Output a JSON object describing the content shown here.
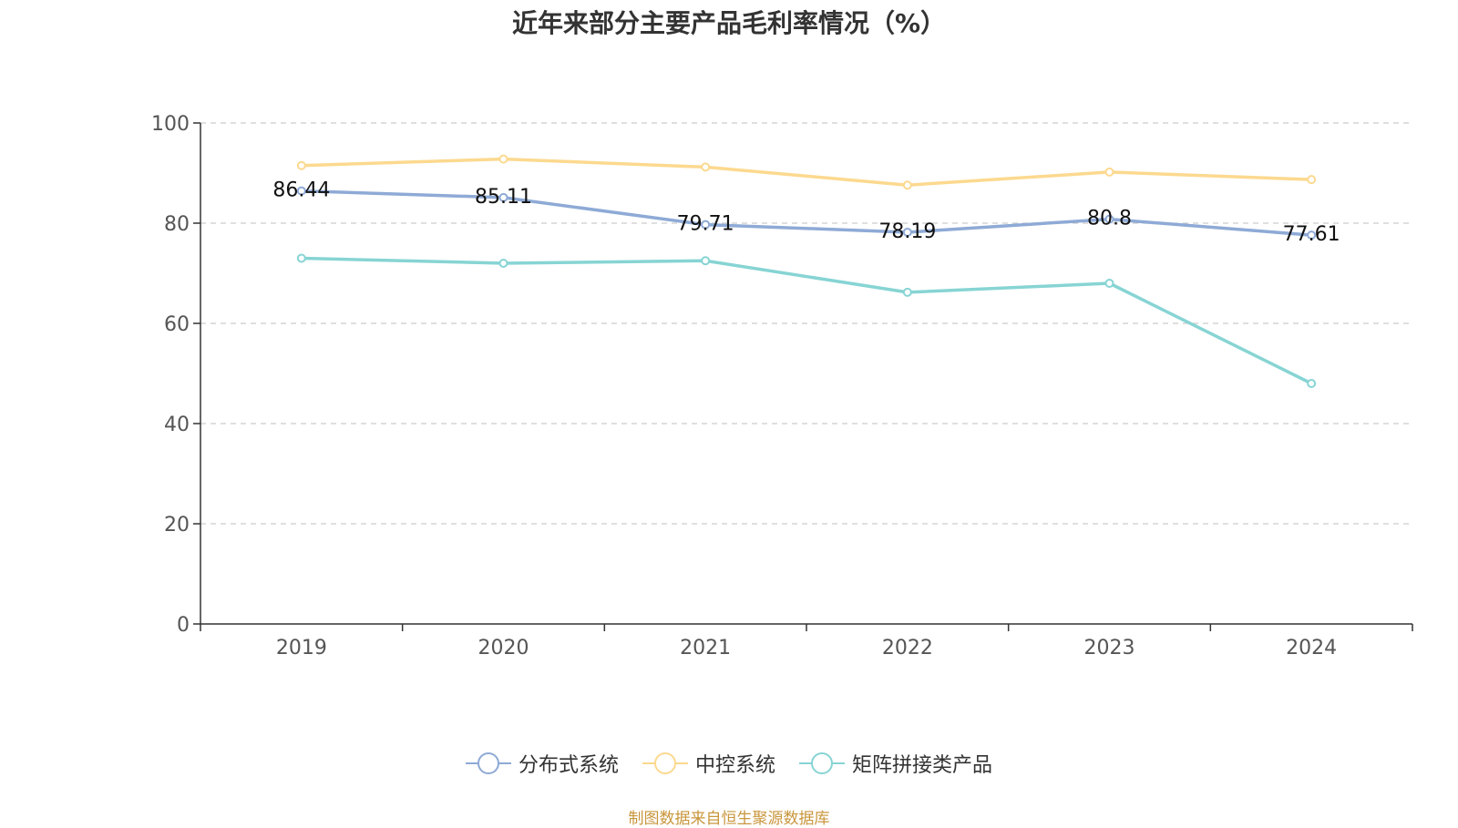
{
  "chart_data": {
    "type": "line",
    "title": "近年来部分主要产品毛利率情况（%）",
    "categories": [
      "2019",
      "2020",
      "2021",
      "2022",
      "2023",
      "2024"
    ],
    "ylim": [
      0,
      100
    ],
    "yticks": [
      "0",
      "20",
      "40",
      "60",
      "80",
      "100"
    ],
    "grid": true,
    "legend_position": "bottom",
    "series": [
      {
        "name": "分布式系统",
        "color": "#8eaad6",
        "values": [
          86.44,
          85.11,
          79.71,
          78.19,
          80.8,
          77.61
        ],
        "labels": [
          "86.44",
          "85.11",
          "79.71",
          "78.19",
          "80.8",
          "77.61"
        ]
      },
      {
        "name": "中控系统",
        "color": "#fcd98f",
        "values": [
          91.5,
          92.8,
          91.2,
          87.6,
          90.2,
          88.7
        ]
      },
      {
        "name": "矩阵拼接类产品",
        "color": "#87d4d4",
        "values": [
          73.0,
          72.0,
          72.5,
          66.2,
          68.0,
          48.0
        ]
      }
    ]
  },
  "footer": {
    "source": "制图数据来自恒生聚源数据库"
  }
}
